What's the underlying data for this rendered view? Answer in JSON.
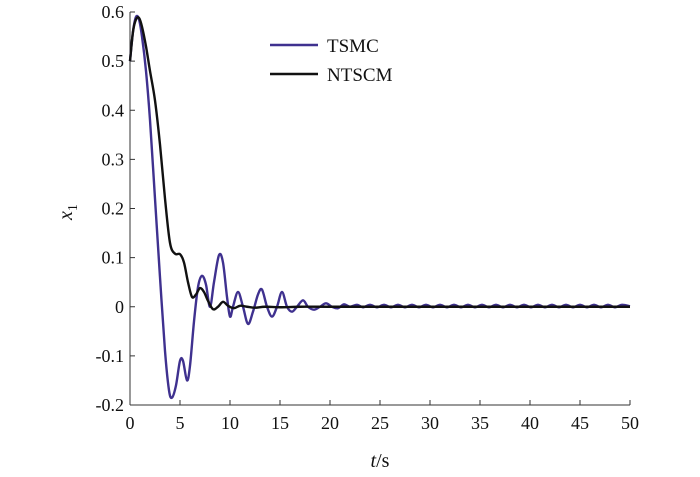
{
  "chart_data": {
    "type": "line",
    "xlabel_italic": "t",
    "xlabel_rest": "/s",
    "ylabel_main": "x",
    "ylabel_sub": "1",
    "xlim": [
      0,
      50
    ],
    "ylim": [
      -0.2,
      0.6
    ],
    "xticks": [
      "0",
      "5",
      "10",
      "15",
      "20",
      "25",
      "30",
      "35",
      "40",
      "45",
      "50"
    ],
    "yticks": [
      "-0.2",
      "-0.1",
      "0",
      "0.1",
      "0.2",
      "0.3",
      "0.4",
      "0.5",
      "0.6"
    ],
    "legend_position": "top-center",
    "grid": false,
    "series": [
      {
        "name": "TSMC",
        "color": "#3f318f",
        "points": [
          [
            0,
            0.5
          ],
          [
            0.3,
            0.56
          ],
          [
            0.6,
            0.59
          ],
          [
            0.9,
            0.585
          ],
          [
            1.2,
            0.55
          ],
          [
            1.6,
            0.48
          ],
          [
            2.0,
            0.38
          ],
          [
            2.5,
            0.22
          ],
          [
            3.0,
            0.06
          ],
          [
            3.5,
            -0.09
          ],
          [
            3.9,
            -0.17
          ],
          [
            4.2,
            -0.185
          ],
          [
            4.6,
            -0.16
          ],
          [
            5.0,
            -0.11
          ],
          [
            5.3,
            -0.11
          ],
          [
            5.7,
            -0.15
          ],
          [
            6.0,
            -0.12
          ],
          [
            6.4,
            -0.03
          ],
          [
            6.8,
            0.04
          ],
          [
            7.2,
            0.063
          ],
          [
            7.6,
            0.045
          ],
          [
            8.0,
            0.0
          ],
          [
            8.4,
            0.05
          ],
          [
            8.9,
            0.105
          ],
          [
            9.3,
            0.09
          ],
          [
            9.7,
            0.02
          ],
          [
            10.0,
            -0.02
          ],
          [
            10.3,
            0.0
          ],
          [
            10.8,
            0.03
          ],
          [
            11.3,
            0.0
          ],
          [
            11.8,
            -0.035
          ],
          [
            12.3,
            -0.01
          ],
          [
            12.8,
            0.025
          ],
          [
            13.2,
            0.035
          ],
          [
            13.7,
            0.0
          ],
          [
            14.2,
            -0.02
          ],
          [
            14.7,
            0.0
          ],
          [
            15.2,
            0.03
          ],
          [
            15.7,
            0.0
          ],
          [
            16.2,
            -0.01
          ],
          [
            16.7,
            0.0
          ],
          [
            17.3,
            0.013
          ],
          [
            17.8,
            0.0
          ],
          [
            18.4,
            -0.006
          ],
          [
            19.0,
            0.0
          ],
          [
            19.6,
            0.007
          ],
          [
            20.2,
            0.0
          ],
          [
            20.8,
            -0.003
          ],
          [
            21.4,
            0.005
          ],
          [
            22.0,
            0.0
          ],
          [
            22.7,
            0.004
          ],
          [
            23.3,
            -0.001
          ],
          [
            24.0,
            0.004
          ],
          [
            24.7,
            -0.001
          ],
          [
            25.4,
            0.004
          ],
          [
            26.1,
            -0.001
          ],
          [
            26.8,
            0.004
          ],
          [
            27.5,
            -0.001
          ],
          [
            28.2,
            0.004
          ],
          [
            28.9,
            -0.001
          ],
          [
            29.6,
            0.004
          ],
          [
            30.3,
            -0.001
          ],
          [
            31.0,
            0.004
          ],
          [
            31.7,
            -0.001
          ],
          [
            32.4,
            0.004
          ],
          [
            33.1,
            -0.001
          ],
          [
            33.8,
            0.004
          ],
          [
            34.5,
            -0.001
          ],
          [
            35.2,
            0.004
          ],
          [
            35.9,
            -0.001
          ],
          [
            36.6,
            0.004
          ],
          [
            37.3,
            -0.001
          ],
          [
            38.0,
            0.004
          ],
          [
            38.7,
            -0.001
          ],
          [
            39.4,
            0.004
          ],
          [
            40.1,
            -0.001
          ],
          [
            40.8,
            0.004
          ],
          [
            41.5,
            -0.001
          ],
          [
            42.2,
            0.004
          ],
          [
            42.9,
            -0.001
          ],
          [
            43.6,
            0.004
          ],
          [
            44.3,
            -0.001
          ],
          [
            45.0,
            0.004
          ],
          [
            45.7,
            -0.001
          ],
          [
            46.4,
            0.004
          ],
          [
            47.1,
            -0.001
          ],
          [
            47.8,
            0.004
          ],
          [
            48.5,
            -0.001
          ],
          [
            49.2,
            0.004
          ],
          [
            50.0,
            0.001
          ]
        ]
      },
      {
        "name": "NTSCM",
        "color": "#111111",
        "points": [
          [
            0,
            0.5
          ],
          [
            0.3,
            0.56
          ],
          [
            0.6,
            0.585
          ],
          [
            0.9,
            0.588
          ],
          [
            1.2,
            0.57
          ],
          [
            1.6,
            0.53
          ],
          [
            2.0,
            0.48
          ],
          [
            2.5,
            0.42
          ],
          [
            3.0,
            0.33
          ],
          [
            3.5,
            0.22
          ],
          [
            4.0,
            0.13
          ],
          [
            4.5,
            0.108
          ],
          [
            5.0,
            0.107
          ],
          [
            5.4,
            0.09
          ],
          [
            5.8,
            0.05
          ],
          [
            6.2,
            0.02
          ],
          [
            6.6,
            0.025
          ],
          [
            7.0,
            0.038
          ],
          [
            7.4,
            0.03
          ],
          [
            7.8,
            0.012
          ],
          [
            8.3,
            -0.005
          ],
          [
            8.8,
            0.0
          ],
          [
            9.3,
            0.01
          ],
          [
            9.8,
            0.002
          ],
          [
            10.4,
            -0.003
          ],
          [
            11.0,
            0.002
          ],
          [
            11.7,
            0.0
          ],
          [
            12.5,
            -0.002
          ],
          [
            13.5,
            0.0
          ],
          [
            15,
            -0.001
          ],
          [
            17,
            0.0
          ],
          [
            20,
            0.0
          ],
          [
            30,
            0.0
          ],
          [
            40,
            0.0
          ],
          [
            50,
            0.0
          ]
        ]
      }
    ]
  }
}
